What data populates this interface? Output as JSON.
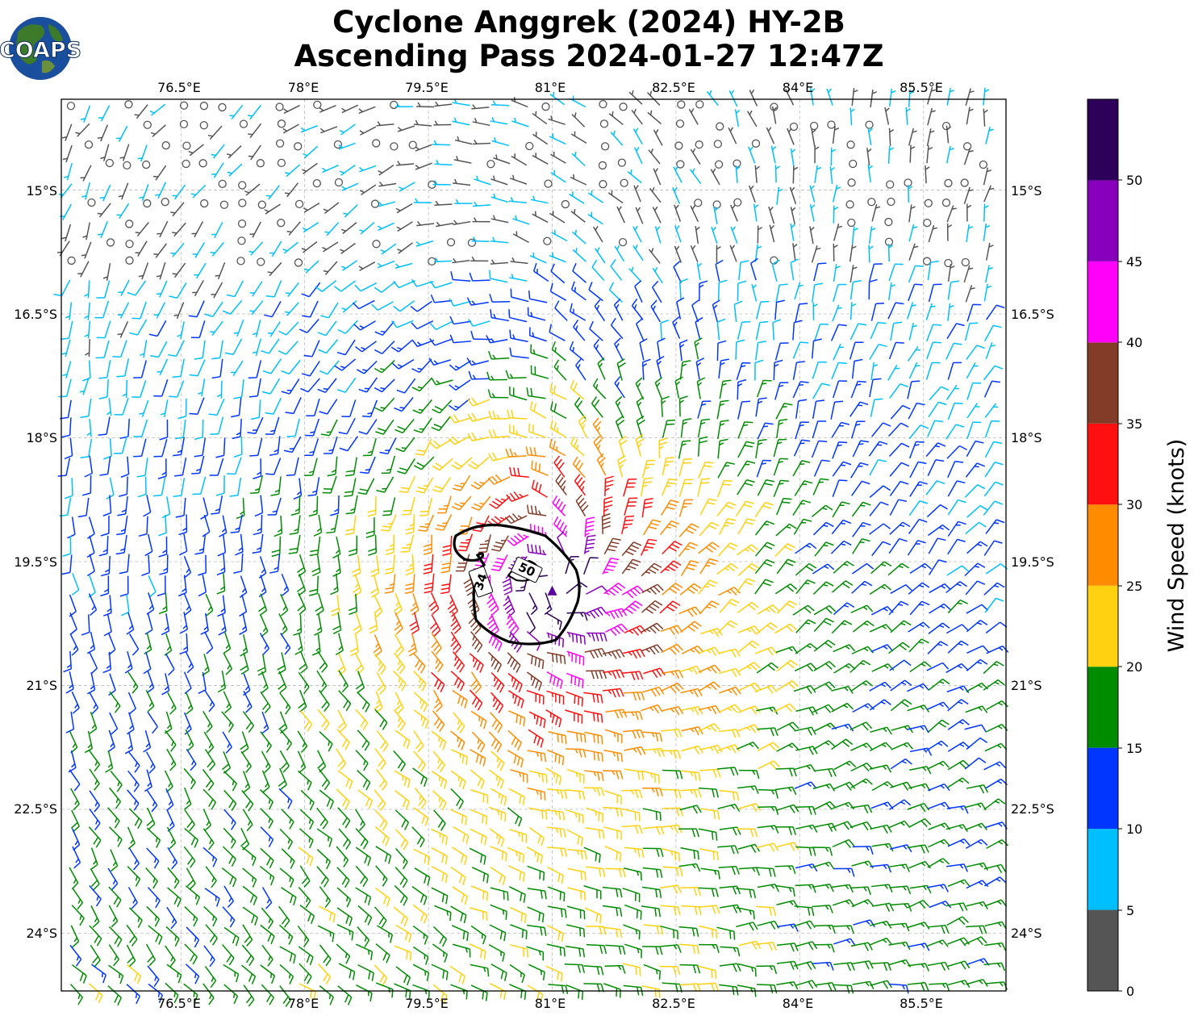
{
  "header": {
    "title_line1": "Cyclone Anggrek (2024) HY-2B",
    "title_line2": "Ascending Pass 2024-01-27 12:47Z"
  },
  "logo": {
    "text": "COAPS"
  },
  "map": {
    "lon_range": [
      75.05,
      86.5
    ],
    "lat_range": [
      -24.7,
      -13.9
    ],
    "lon_ticks": [
      "76.5°E",
      "78°E",
      "79.5°E",
      "81°E",
      "82.5°E",
      "84°E",
      "85.5°E"
    ],
    "lat_ticks": [
      "15°S",
      "16.5°S",
      "18°S",
      "19.5°S",
      "21°S",
      "22.5°S",
      "24°S"
    ],
    "gridlines": true,
    "storm_center": {
      "lon": 81.0,
      "lat": -19.85
    },
    "contour_labels": [
      "34",
      "50"
    ]
  },
  "colorbar": {
    "label": "Wind Speed (knots)",
    "ticks": [
      "0",
      "5",
      "10",
      "15",
      "20",
      "25",
      "30",
      "35",
      "40",
      "45",
      "50"
    ],
    "bands": [
      {
        "range": [
          0,
          5
        ],
        "color": "#555555"
      },
      {
        "range": [
          5,
          10
        ],
        "color": "#00bfff"
      },
      {
        "range": [
          10,
          15
        ],
        "color": "#0036ff"
      },
      {
        "range": [
          15,
          20
        ],
        "color": "#008c00"
      },
      {
        "range": [
          20,
          25
        ],
        "color": "#ffd111"
      },
      {
        "range": [
          25,
          30
        ],
        "color": "#ff8c00"
      },
      {
        "range": [
          30,
          35
        ],
        "color": "#ff1010"
      },
      {
        "range": [
          35,
          40
        ],
        "color": "#833c28"
      },
      {
        "range": [
          40,
          45
        ],
        "color": "#ff00f8"
      },
      {
        "range": [
          45,
          50
        ],
        "color": "#8800bb"
      },
      {
        "range": [
          50,
          55
        ],
        "color": "#2d0059"
      }
    ]
  }
}
